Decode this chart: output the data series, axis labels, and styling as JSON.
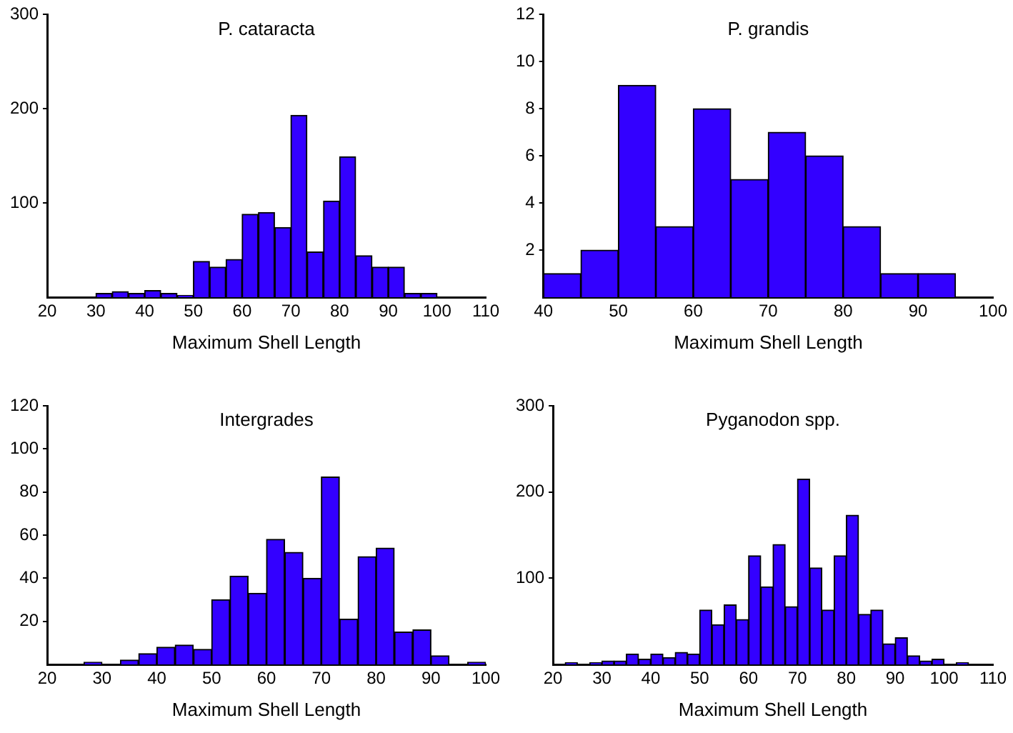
{
  "chart_data": [
    {
      "type": "histogram",
      "title": "P. cataracta",
      "xlabel": "Maximum Shell Length",
      "color": "#3300ff",
      "bins": [
        30,
        33.3,
        36.7,
        40,
        43.3,
        46.7,
        50,
        53.3,
        56.7,
        60,
        63.3,
        66.7,
        70,
        73.3,
        76.7,
        80,
        83.3,
        86.7,
        90,
        93.3,
        96.7,
        100
      ],
      "values": [
        4,
        6,
        4,
        7,
        4,
        2,
        38,
        32,
        40,
        88,
        90,
        74,
        193,
        48,
        102,
        149,
        44,
        32,
        32,
        4,
        4
      ],
      "xlim": [
        20,
        110
      ],
      "xticks": [
        20,
        30,
        40,
        50,
        60,
        70,
        80,
        90,
        100,
        110
      ],
      "ylim": [
        0,
        300
      ],
      "yticks": [
        100,
        200,
        300
      ],
      "grid": false,
      "legend": false
    },
    {
      "type": "histogram",
      "title": "P. grandis",
      "xlabel": "Maximum Shell Length",
      "color": "#3300ff",
      "bins": [
        40,
        45,
        50,
        55,
        60,
        65,
        70,
        75,
        80,
        85,
        90,
        95
      ],
      "values": [
        1,
        2,
        9,
        3,
        8,
        5,
        7,
        6,
        3,
        1,
        1
      ],
      "xlim": [
        40,
        100
      ],
      "xticks": [
        40,
        50,
        60,
        70,
        80,
        90,
        100
      ],
      "ylim": [
        0,
        12
      ],
      "yticks": [
        2,
        4,
        6,
        8,
        10,
        12
      ],
      "grid": false,
      "legend": false
    },
    {
      "type": "histogram",
      "title": "Intergrades",
      "xlabel": "Maximum Shell Length",
      "color": "#3300ff",
      "bins": [
        26.7,
        30,
        33.3,
        36.7,
        40,
        43.3,
        46.7,
        50,
        53.3,
        56.7,
        60,
        63.3,
        66.7,
        70,
        73.3,
        76.7,
        80,
        83.3,
        86.7,
        90,
        93.3,
        96.7,
        100
      ],
      "values": [
        1,
        0,
        2,
        5,
        8,
        9,
        7,
        30,
        41,
        33,
        58,
        52,
        40,
        87,
        21,
        50,
        54,
        15,
        16,
        4,
        0,
        1
      ],
      "xlim": [
        20,
        100
      ],
      "xticks": [
        20,
        30,
        40,
        50,
        60,
        70,
        80,
        90,
        100
      ],
      "ylim": [
        0,
        120
      ],
      "yticks": [
        20,
        40,
        60,
        80,
        100,
        120
      ],
      "grid": false,
      "legend": false
    },
    {
      "type": "histogram",
      "title": "Pyganodon spp.",
      "xlabel": "Maximum Shell Length",
      "color": "#3300ff",
      "bins": [
        22.5,
        25,
        27.5,
        30,
        32.5,
        35,
        37.5,
        40,
        42.5,
        45,
        47.5,
        50,
        52.5,
        55,
        57.5,
        60,
        62.5,
        65,
        67.5,
        70,
        72.5,
        75,
        77.5,
        80,
        82.5,
        85,
        87.5,
        90,
        92.5,
        95,
        97.5,
        100,
        102.5,
        105
      ],
      "values": [
        2,
        0,
        2,
        4,
        4,
        12,
        6,
        12,
        8,
        14,
        12,
        63,
        46,
        69,
        52,
        126,
        90,
        139,
        67,
        215,
        112,
        63,
        126,
        173,
        58,
        63,
        24,
        31,
        10,
        4,
        6,
        0,
        2
      ],
      "xlim": [
        20,
        110
      ],
      "xticks": [
        20,
        30,
        40,
        50,
        60,
        70,
        80,
        90,
        100,
        110
      ],
      "ylim": [
        0,
        300
      ],
      "yticks": [
        100,
        200,
        300
      ],
      "grid": false,
      "legend": false
    }
  ]
}
